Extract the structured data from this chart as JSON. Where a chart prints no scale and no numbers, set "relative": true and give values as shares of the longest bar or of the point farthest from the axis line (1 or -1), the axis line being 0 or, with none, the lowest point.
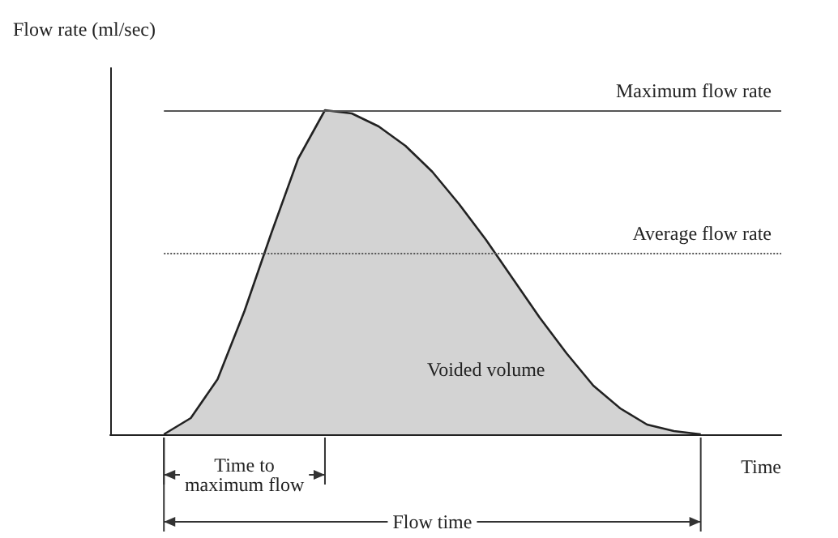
{
  "chart_data": {
    "type": "area",
    "relative": true,
    "ylabel": "Flow rate (ml/sec)",
    "xlabel": "Time",
    "grid": false,
    "marker": "none",
    "line_style": "solid",
    "categories": [
      null,
      null,
      null,
      null,
      null,
      null,
      null,
      null,
      null,
      null,
      null,
      null,
      null,
      null,
      null,
      null,
      null,
      null,
      null,
      null,
      null,
      null,
      null,
      null,
      null,
      null
    ],
    "series": [
      {
        "color": "#222222",
        "values": [
          null,
          null,
          0,
          0.05,
          0.17,
          0.38,
          0.62,
          0.85,
          1.0,
          0.99,
          0.95,
          0.89,
          0.81,
          0.71,
          0.6,
          0.48,
          0.36,
          0.25,
          0.15,
          0.08,
          0.03,
          0.01,
          0,
          null,
          null,
          null
        ]
      }
    ],
    "ref_lines": [
      {
        "axis": "y",
        "value": 1.0,
        "label": "Maximum flow rate",
        "line_style": "solid",
        "color": "#555555"
      },
      {
        "axis": "y",
        "value": 0.56,
        "label": "Average flow rate",
        "line_style": "dotted",
        "color": "#555555"
      }
    ],
    "annotations": [
      "Voided volume",
      "Time to\nmaximum flow",
      "Flow time"
    ]
  }
}
